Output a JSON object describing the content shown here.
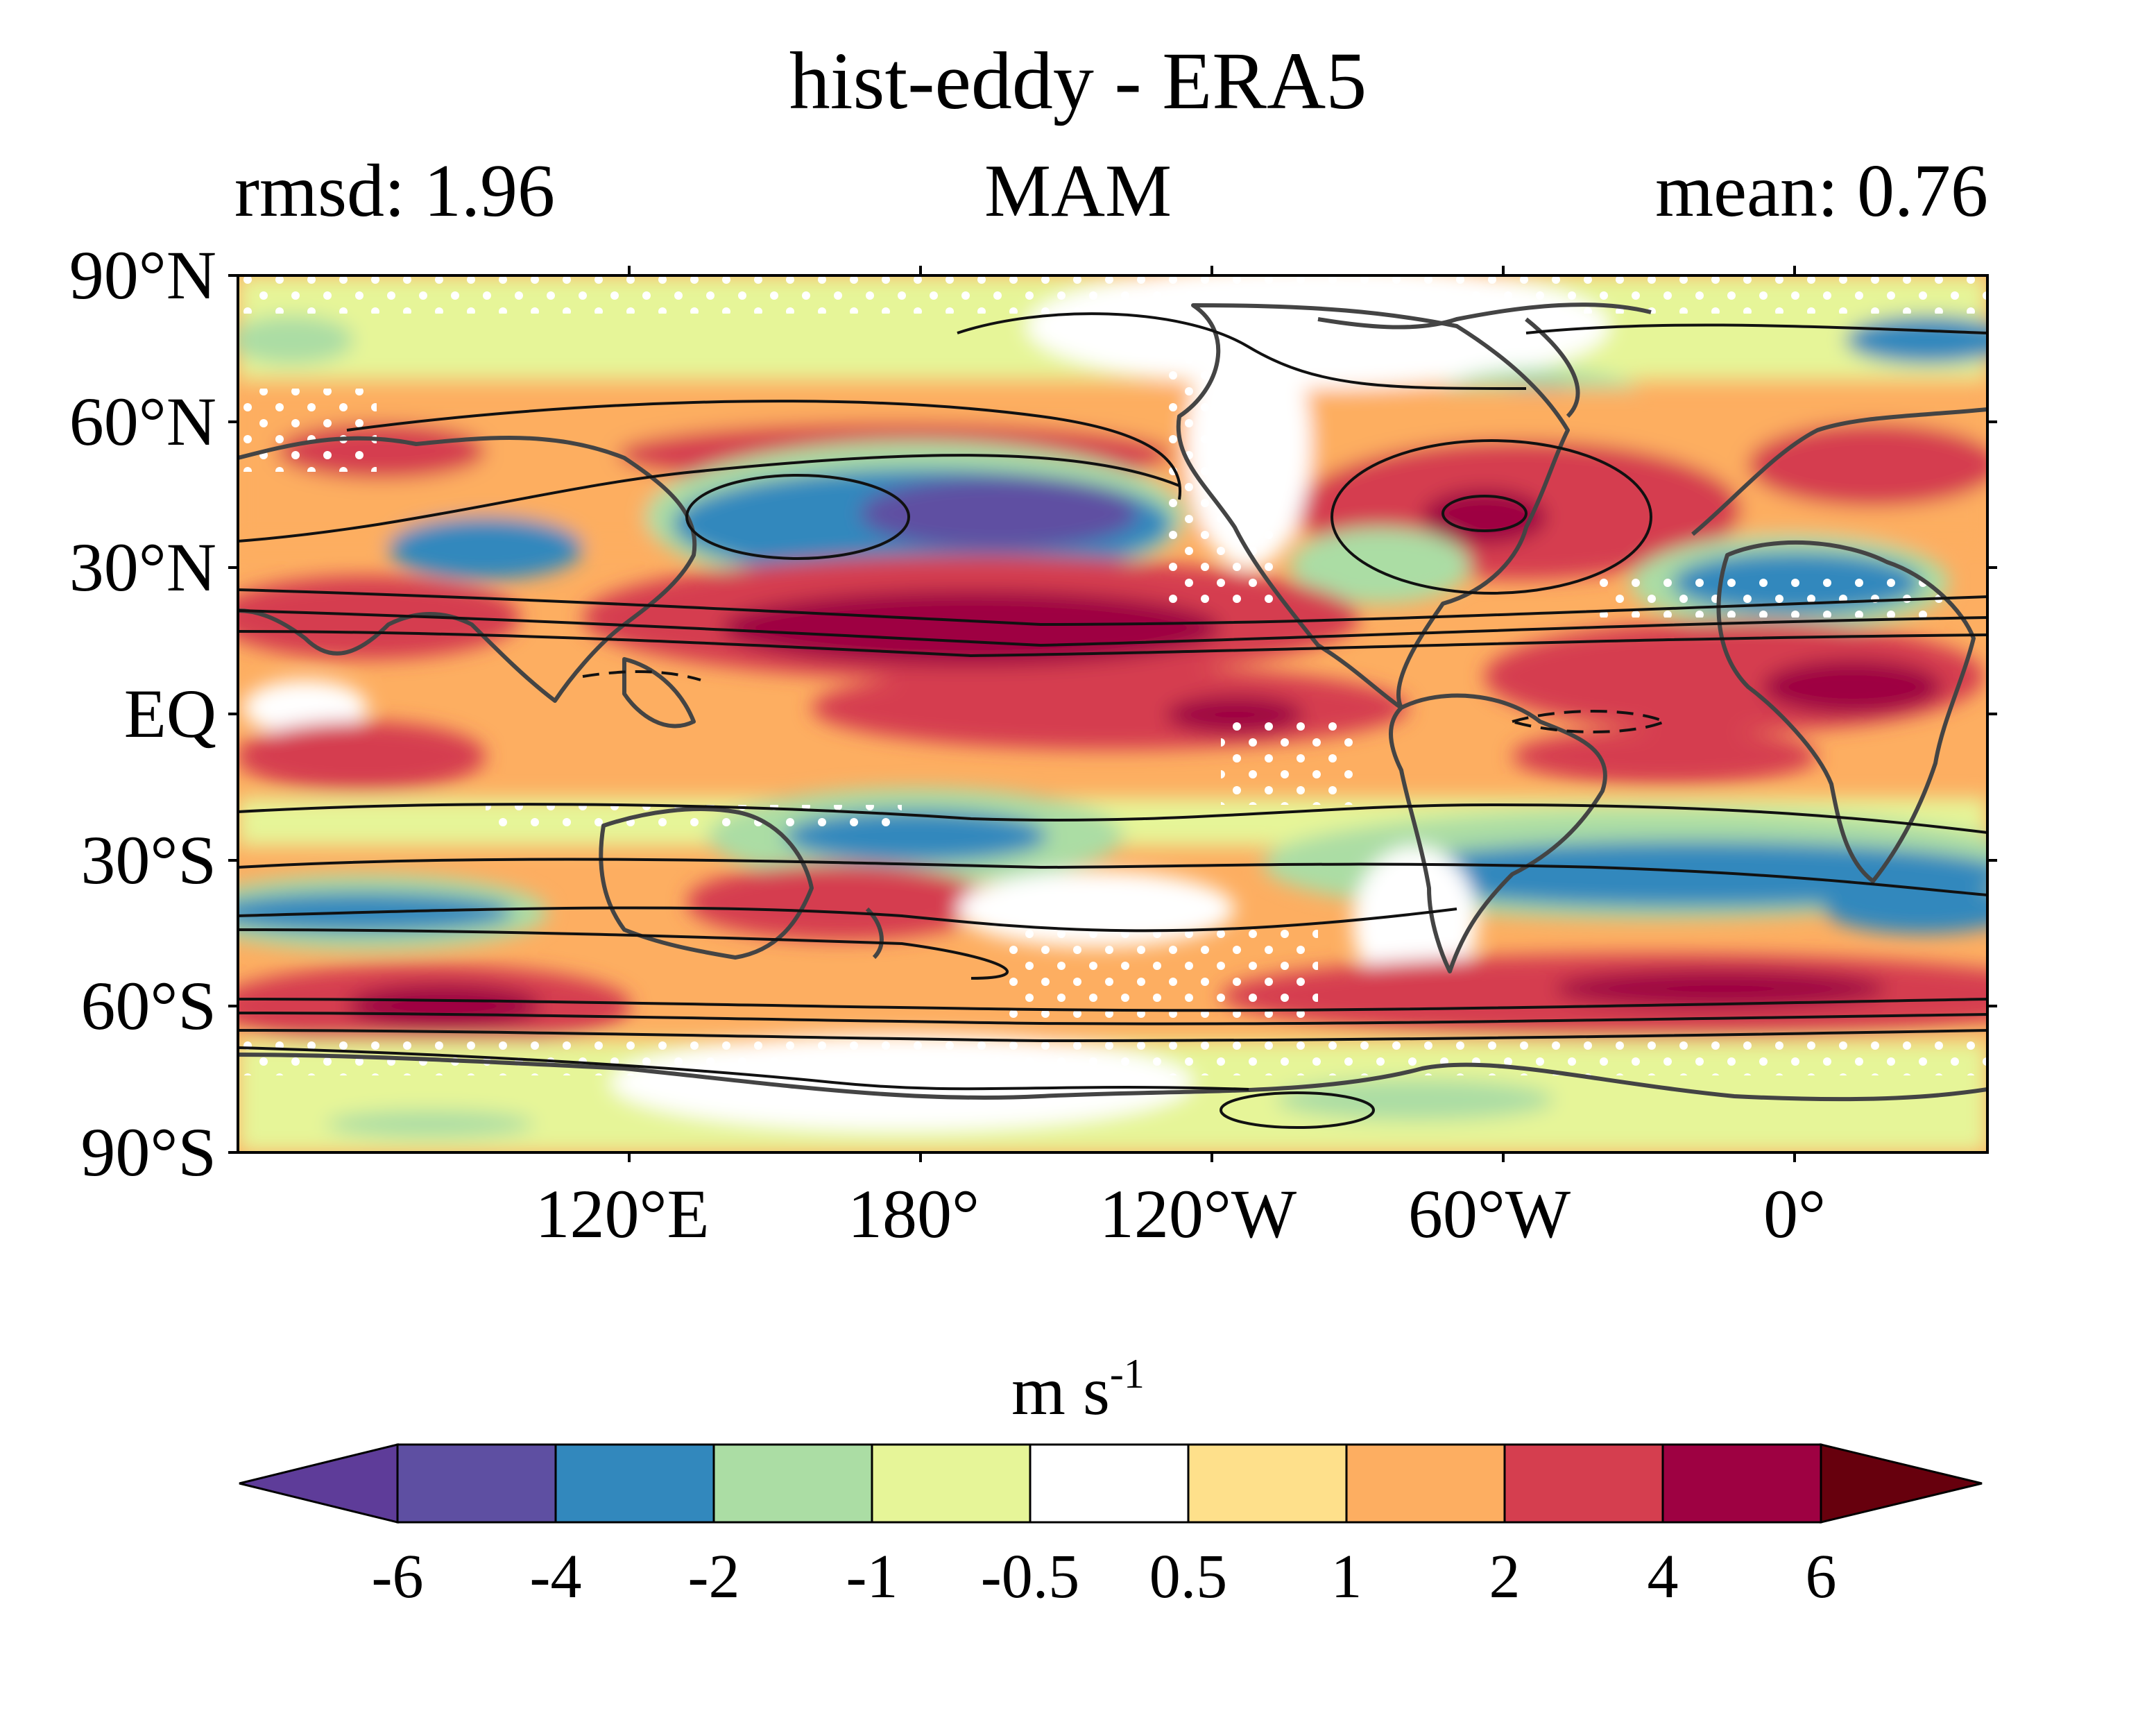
{
  "map": {
    "title": "hist-eddy - ERA5",
    "stat_left": "rmsd: 1.96",
    "season": "MAM",
    "stat_right": "mean: 0.76",
    "lat_ticks": [
      "90°N",
      "60°N",
      "30°N",
      "EQ",
      "30°S",
      "60°S",
      "90°S"
    ],
    "lon_ticks": [
      "120°E",
      "180°",
      "120°W",
      "60°W",
      "0°"
    ],
    "units": "m s",
    "units_exp": "-1"
  },
  "colorbar": {
    "levels": [
      "-6",
      "-4",
      "-2",
      "-1",
      "-0.5",
      "0.5",
      "1",
      "2",
      "4",
      "6"
    ],
    "colors": [
      "#5e3c99",
      "#5e4fa2",
      "#3288bd",
      "#abdda4",
      "#e6f598",
      "#ffffff",
      "#fee08b",
      "#fdae61",
      "#d53e4f",
      "#9e0142",
      "#67000d"
    ]
  },
  "palette": {
    "under": "#5e3c99",
    "deep_blue": "#5e4fa2",
    "blue": "#3288bd",
    "light_green": "#abdda4",
    "pale_yellow_green": "#e6f598",
    "white": "#ffffff",
    "light_yellow": "#fee08b",
    "orange": "#fdae61",
    "red": "#d53e4f",
    "dark_red": "#9e0142",
    "over": "#67000d",
    "coastline": "#444444",
    "contour": "#111111"
  }
}
